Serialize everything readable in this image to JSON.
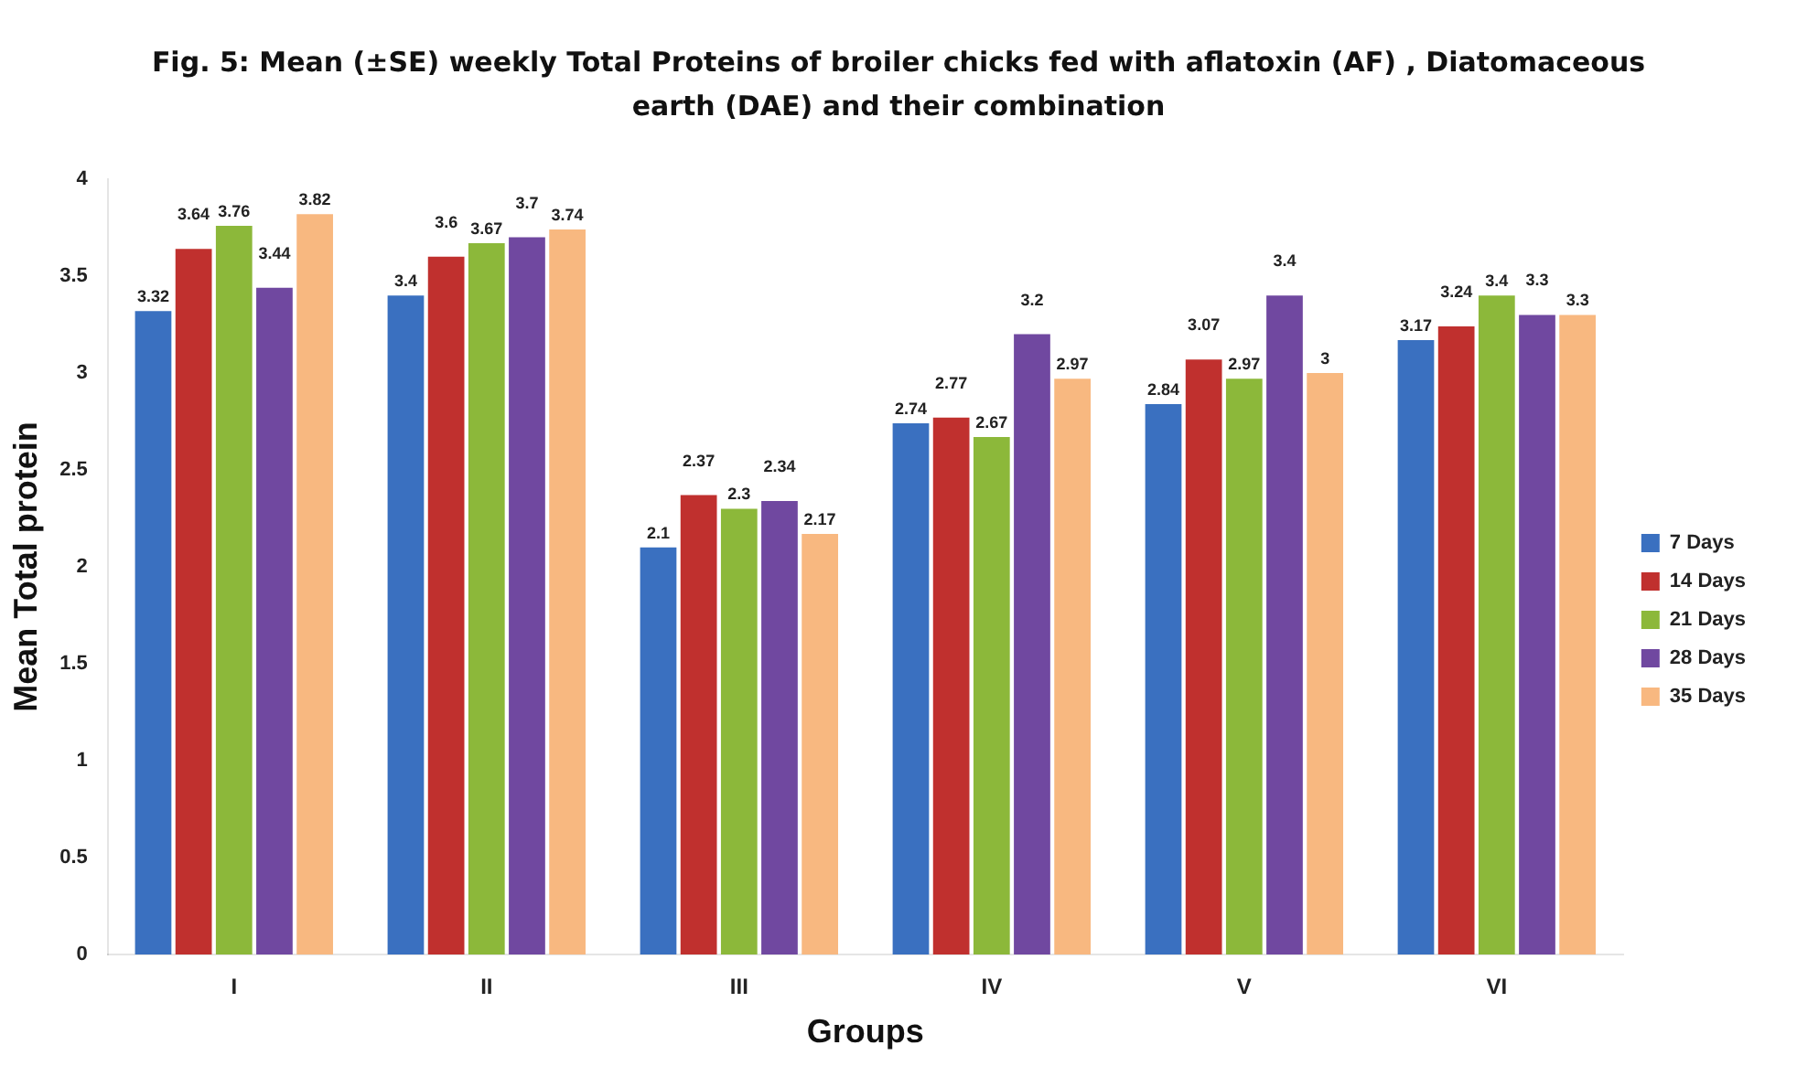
{
  "chart_data": {
    "type": "bar",
    "title": "Fig. 5: Mean (±SE) weekly Total Proteins of broiler chicks fed with aflatoxin (AF) , Diatomaceous earth (DAE) and their combination",
    "xlabel": "Groups",
    "ylabel": "Mean Total protein",
    "categories": [
      "I",
      "II",
      "III",
      "IV",
      "V",
      "VI"
    ],
    "series": [
      {
        "name": "7 Days",
        "color": "#3a70c0",
        "values": [
          3.32,
          3.4,
          2.1,
          2.74,
          2.84,
          3.17
        ]
      },
      {
        "name": "14 Days",
        "color": "#c0302e",
        "values": [
          3.64,
          3.6,
          2.37,
          2.77,
          3.07,
          3.24
        ]
      },
      {
        "name": "21 Days",
        "color": "#8cb83a",
        "values": [
          3.76,
          3.67,
          2.3,
          2.67,
          2.97,
          3.4
        ]
      },
      {
        "name": "28 Days",
        "color": "#7048a0",
        "values": [
          3.44,
          3.7,
          2.34,
          3.2,
          3.4,
          3.3
        ]
      },
      {
        "name": "35 Days",
        "color": "#f8b880",
        "values": [
          3.82,
          3.74,
          2.17,
          2.97,
          3,
          3.3
        ]
      }
    ],
    "ylim": [
      0,
      4
    ],
    "yticks": [
      0,
      0.5,
      1,
      1.5,
      2,
      2.5,
      3,
      3.5,
      4
    ],
    "grid": false,
    "legend": "right",
    "data_labels": true
  }
}
